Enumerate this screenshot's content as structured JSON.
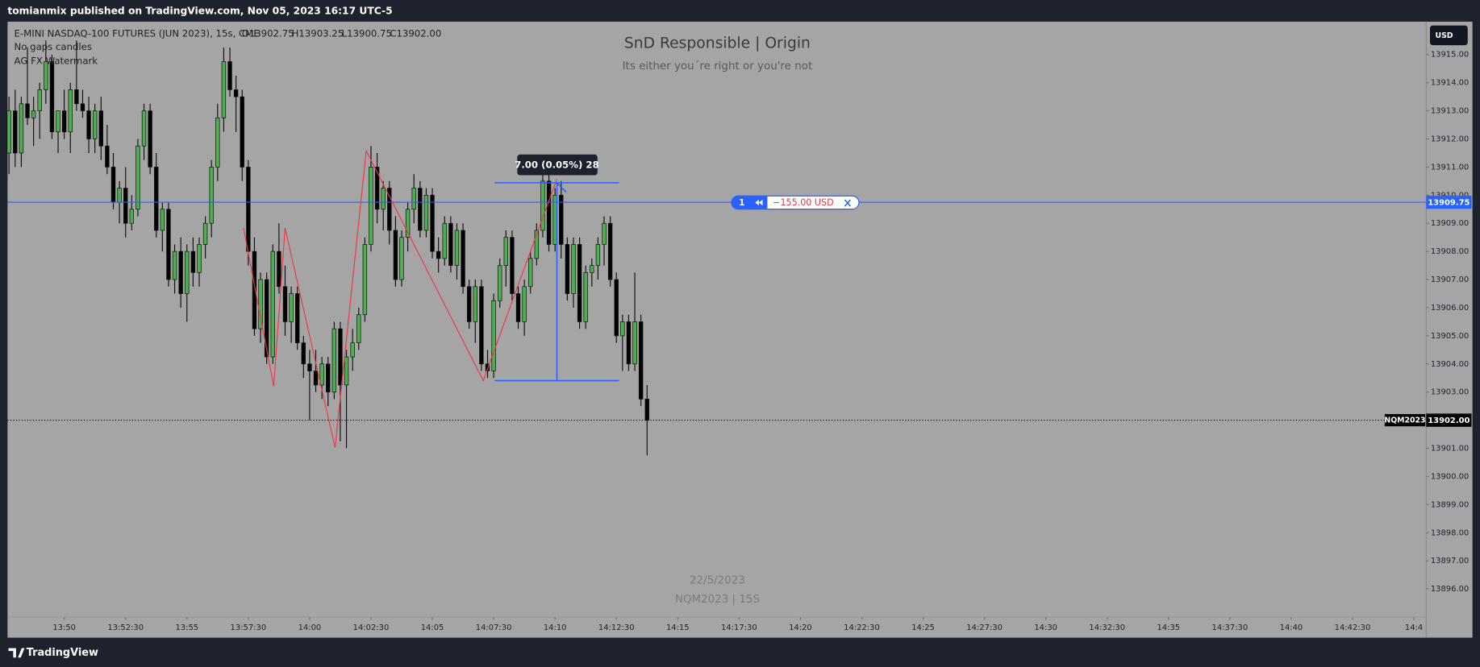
{
  "header": {
    "publisher": "tomianmix published on TradingView.com, Nov 05, 2023 16:17 UTC-5",
    "brand": "TradingView"
  },
  "chart_data": {
    "type": "candlestick",
    "title": "SnD Responsible | Origin",
    "subtitle": "Its either you´re right or you're not",
    "symbol": "E-MINI NASDAQ-100 FUTURES (JUN 2023), 15s, CME",
    "ohlc_legend": [
      "O13902.75",
      "H13903.25",
      "L13900.75",
      "C13902.00"
    ],
    "indicators": [
      "No gaps candles",
      "AG FX Watermark"
    ],
    "watermark": [
      "22/5/2023",
      "NQM2023 | 15S"
    ],
    "currency": "USD",
    "ticker": "NQM2023",
    "last_price_label": "13902.00",
    "price_line": 13909.75,
    "order": {
      "qty": 1,
      "pnl": "−155.00 USD"
    },
    "measure": "7.00 (0.05%) 28",
    "up_color": "#4caf50",
    "down_color": "#000000",
    "grid": false,
    "x": [
      827.75,
      828,
      828.25,
      828.5,
      828.75,
      829,
      829.25,
      829.5,
      829.75,
      830,
      830.25,
      830.5,
      830.75,
      831,
      831.25,
      831.5,
      831.75,
      832,
      832.25,
      832.5,
      832.75,
      833,
      833.25,
      833.5,
      833.75,
      834,
      834.25,
      834.5,
      834.75,
      835,
      835.25,
      835.5,
      835.75,
      836,
      836.25,
      836.5,
      836.75,
      837,
      837.25,
      837.5,
      837.75,
      838,
      838.25,
      838.5,
      838.75,
      839,
      839.25,
      839.5,
      839.75,
      840,
      840.25,
      840.5,
      840.75,
      841,
      841.25,
      841.5,
      841.75,
      842,
      842.25,
      842.5,
      842.75,
      843,
      843.25,
      843.5,
      843.75,
      844,
      844.25,
      844.5,
      844.75,
      845,
      845.25,
      845.5,
      845.75,
      846,
      846.25,
      846.5,
      846.75,
      847,
      847.25,
      847.5,
      847.75,
      848,
      848.25,
      848.5,
      848.75,
      849,
      849.25,
      849.5,
      849.75,
      850,
      850.25,
      850.5,
      850.75,
      851,
      851.25,
      851.5,
      851.75,
      852,
      852.25,
      852.5,
      852.75,
      853,
      853.25,
      853.5,
      853.75
    ],
    "candles": [
      [
        13911.5,
        13913.5,
        13910.75,
        13913
      ],
      [
        13913,
        13913.75,
        13911,
        13911.5
      ],
      [
        13911.5,
        13913.5,
        13911,
        13913.25
      ],
      [
        13913.25,
        13915.25,
        13912.5,
        13912.75
      ],
      [
        13912.75,
        13913.5,
        13911.75,
        13913
      ],
      [
        13913,
        13914,
        13912,
        13913.75
      ],
      [
        13913.75,
        13915.5,
        13913.25,
        13914.75
      ],
      [
        13914.75,
        13915,
        13912,
        13912.25
      ],
      [
        13912.25,
        13913,
        13911.5,
        13913
      ],
      [
        13913,
        13913.75,
        13912,
        13912.25
      ],
      [
        13912.25,
        13914,
        13911.5,
        13913.75
      ],
      [
        13913.75,
        13915.5,
        13913,
        13913.25
      ],
      [
        13913.25,
        13913.75,
        13912.75,
        13913
      ],
      [
        13913,
        13913.5,
        13911.5,
        13912
      ],
      [
        13912,
        13913.25,
        13911.5,
        13913
      ],
      [
        13913,
        13913.5,
        13911.25,
        13911.75
      ],
      [
        13911.75,
        13912.5,
        13910.75,
        13911
      ],
      [
        13911,
        13911.5,
        13909.5,
        13909.75
      ],
      [
        13909.75,
        13910.5,
        13909,
        13910.25
      ],
      [
        13910.25,
        13911,
        13908.5,
        13909
      ],
      [
        13909,
        13910,
        13908.75,
        13909.5
      ],
      [
        13909.5,
        13912,
        13909.25,
        13911.75
      ],
      [
        13911.75,
        13913.25,
        13911.25,
        13913
      ],
      [
        13913,
        13913.25,
        13910.75,
        13911
      ],
      [
        13911,
        13911.5,
        13908.5,
        13908.75
      ],
      [
        13908.75,
        13909.75,
        13908,
        13909.5
      ],
      [
        13909.5,
        13909.75,
        13906.75,
        13907
      ],
      [
        13907,
        13908.25,
        13906.5,
        13908
      ],
      [
        13908,
        13908.5,
        13906,
        13906.5
      ],
      [
        13906.5,
        13908.25,
        13905.5,
        13908
      ],
      [
        13908,
        13908.5,
        13906.75,
        13907.25
      ],
      [
        13907.25,
        13908.5,
        13906.75,
        13908.25
      ],
      [
        13908.25,
        13909.25,
        13907.75,
        13909
      ],
      [
        13909,
        13911.25,
        13908.5,
        13911
      ],
      [
        13911,
        13913.25,
        13910.5,
        13912.75
      ],
      [
        13912.75,
        13915.25,
        13912.25,
        13914.75
      ],
      [
        13914.75,
        13915.25,
        13913.5,
        13913.75
      ],
      [
        13913.75,
        13914.25,
        13912.25,
        13913.5
      ],
      [
        13913.5,
        13913.75,
        13910.5,
        13911
      ],
      [
        13911,
        13911.25,
        13907.5,
        13908
      ],
      [
        13908,
        13908.5,
        13905,
        13905.25
      ],
      [
        13905.25,
        13907.25,
        13904.75,
        13907
      ],
      [
        13907,
        13907.25,
        13904,
        13904.25
      ],
      [
        13904.25,
        13908.25,
        13904,
        13908
      ],
      [
        13908,
        13909,
        13906.5,
        13906.75
      ],
      [
        13906.75,
        13907.5,
        13905,
        13905.5
      ],
      [
        13905.5,
        13906.75,
        13904.75,
        13906.5
      ],
      [
        13906.5,
        13906.75,
        13904.5,
        13904.75
      ],
      [
        13904.75,
        13905,
        13903.5,
        13904
      ],
      [
        13904,
        13904.5,
        13902,
        13903.75
      ],
      [
        13903.75,
        13904.5,
        13903,
        13903.25
      ],
      [
        13903.25,
        13904.25,
        13902.75,
        13904
      ],
      [
        13904,
        13904.25,
        13902.5,
        13903
      ],
      [
        13903,
        13905.5,
        13902.75,
        13905.25
      ],
      [
        13905.25,
        13905.5,
        13901.25,
        13903.25
      ],
      [
        13903.25,
        13904.5,
        13901,
        13904.25
      ],
      [
        13904.25,
        13905.25,
        13903.75,
        13904.75
      ],
      [
        13904.75,
        13906,
        13904.5,
        13905.75
      ],
      [
        13905.75,
        13908.5,
        13905.5,
        13908.25
      ],
      [
        13908.25,
        13911.75,
        13908,
        13911
      ],
      [
        13911,
        13911.5,
        13909,
        13909.5
      ],
      [
        13909.5,
        13910.5,
        13908.75,
        13910.25
      ],
      [
        13910.25,
        13910.5,
        13908.25,
        13908.75
      ],
      [
        13908.75,
        13909.25,
        13906.75,
        13907
      ],
      [
        13907,
        13908.75,
        13906.75,
        13908.5
      ],
      [
        13908.5,
        13909.75,
        13908,
        13909.5
      ],
      [
        13909.5,
        13910.75,
        13909,
        13910.25
      ],
      [
        13910.25,
        13910.5,
        13908.5,
        13908.75
      ],
      [
        13908.75,
        13910.25,
        13908.5,
        13910
      ],
      [
        13910,
        13910.25,
        13907.75,
        13908
      ],
      [
        13908,
        13908.5,
        13907.25,
        13907.75
      ],
      [
        13907.75,
        13909.25,
        13907.5,
        13909
      ],
      [
        13909,
        13909.25,
        13907.25,
        13907.5
      ],
      [
        13907.5,
        13909,
        13907,
        13908.75
      ],
      [
        13908.75,
        13909,
        13906.5,
        13906.75
      ],
      [
        13906.75,
        13907,
        13905.25,
        13905.5
      ],
      [
        13905.5,
        13907,
        13904.75,
        13906.75
      ],
      [
        13906.75,
        13907,
        13903.75,
        13904
      ],
      [
        13904,
        13904.5,
        13903.5,
        13903.75
      ],
      [
        13903.75,
        13906.5,
        13903.5,
        13906.25
      ],
      [
        13906.25,
        13907.75,
        13906,
        13907.5
      ],
      [
        13907.5,
        13908.75,
        13906.75,
        13908.5
      ],
      [
        13908.5,
        13908.75,
        13906.25,
        13906.5
      ],
      [
        13906.5,
        13906.75,
        13905.25,
        13905.5
      ],
      [
        13905.5,
        13907,
        13905,
        13906.75
      ],
      [
        13906.75,
        13908,
        13906.5,
        13907.75
      ],
      [
        13907.75,
        13909,
        13907.5,
        13908.75
      ],
      [
        13908.75,
        13910.75,
        13908.5,
        13910.5
      ],
      [
        13910.5,
        13910.75,
        13908,
        13908.25
      ],
      [
        13908.25,
        13910.25,
        13908,
        13910
      ],
      [
        13910,
        13910.5,
        13907.75,
        13908.25
      ],
      [
        13908.25,
        13908.5,
        13906.25,
        13906.5
      ],
      [
        13906.5,
        13908.5,
        13906,
        13908.25
      ],
      [
        13908.25,
        13908.5,
        13905.25,
        13905.5
      ],
      [
        13905.5,
        13907.5,
        13905.25,
        13907.25
      ],
      [
        13907.25,
        13907.75,
        13906.75,
        13907.5
      ],
      [
        13907.5,
        13908.5,
        13907,
        13908.25
      ],
      [
        13908.25,
        13909.25,
        13907.5,
        13909
      ],
      [
        13909,
        13909.25,
        13906.75,
        13907
      ],
      [
        13907,
        13907.25,
        13904.75,
        13905
      ],
      [
        13905,
        13905.75,
        13903.75,
        13905.5
      ],
      [
        13905.5,
        13905.75,
        13903.75,
        13904
      ],
      [
        13904,
        13907.25,
        13903.75,
        13905.5
      ],
      [
        13905.5,
        13905.75,
        13902.5,
        13902.75
      ],
      [
        13902.75,
        13903.25,
        13900.75,
        13902
      ]
    ],
    "xlim": [
      827.69,
      885.5
    ],
    "xticks": [
      {
        "value": 830,
        "label": "13:50"
      },
      {
        "value": 832.5,
        "label": "13:52:30"
      },
      {
        "value": 835,
        "label": "13:55"
      },
      {
        "value": 837.5,
        "label": "13:57:30"
      },
      {
        "value": 840,
        "label": "14:00"
      },
      {
        "value": 842.5,
        "label": "14:02:30"
      },
      {
        "value": 845,
        "label": "14:05"
      },
      {
        "value": 847.5,
        "label": "14:07:30"
      },
      {
        "value": 850,
        "label": "14:10"
      },
      {
        "value": 852.5,
        "label": "14:12:30"
      },
      {
        "value": 855,
        "label": "14:15"
      },
      {
        "value": 857.5,
        "label": "14:17:30"
      },
      {
        "value": 860,
        "label": "14:20"
      },
      {
        "value": 862.5,
        "label": "14:22:30"
      },
      {
        "value": 865,
        "label": "14:25"
      },
      {
        "value": 867.5,
        "label": "14:27:30"
      },
      {
        "value": 870,
        "label": "14:30"
      },
      {
        "value": 872.5,
        "label": "14:32:30"
      },
      {
        "value": 875,
        "label": "14:35"
      },
      {
        "value": 877.5,
        "label": "14:37:30"
      },
      {
        "value": 880,
        "label": "14:40"
      },
      {
        "value": 882.5,
        "label": "14:42:30"
      },
      {
        "value": 885,
        "label": "14:4"
      }
    ],
    "ylim": [
      13895.1,
      13916.17
    ],
    "yticks": [
      {
        "value": 13915,
        "label": "13915.00"
      },
      {
        "value": 13914,
        "label": "13914.00"
      },
      {
        "value": 13913,
        "label": "13913.00"
      },
      {
        "value": 13912,
        "label": "13912.00"
      },
      {
        "value": 13911,
        "label": "13911.00"
      },
      {
        "value": 13910,
        "label": "13910.00"
      },
      {
        "value": 13909,
        "label": "13909.00"
      },
      {
        "value": 13908,
        "label": "13908.00"
      },
      {
        "value": 13907,
        "label": "13907.00"
      },
      {
        "value": 13906,
        "label": "13906.00"
      },
      {
        "value": 13905,
        "label": "13905.00"
      },
      {
        "value": 13904,
        "label": "13904.00"
      },
      {
        "value": 13903,
        "label": "13903.00"
      },
      {
        "value": 13902,
        "label": "13902.00"
      },
      {
        "value": 13901,
        "label": "13901.00"
      },
      {
        "value": 13900,
        "label": "13900.00"
      },
      {
        "value": 13899,
        "label": "13899.00"
      },
      {
        "value": 13898,
        "label": "13898.00"
      },
      {
        "value": 13897,
        "label": "13897.00"
      },
      {
        "value": 13896,
        "label": "13896.00"
      }
    ]
  }
}
